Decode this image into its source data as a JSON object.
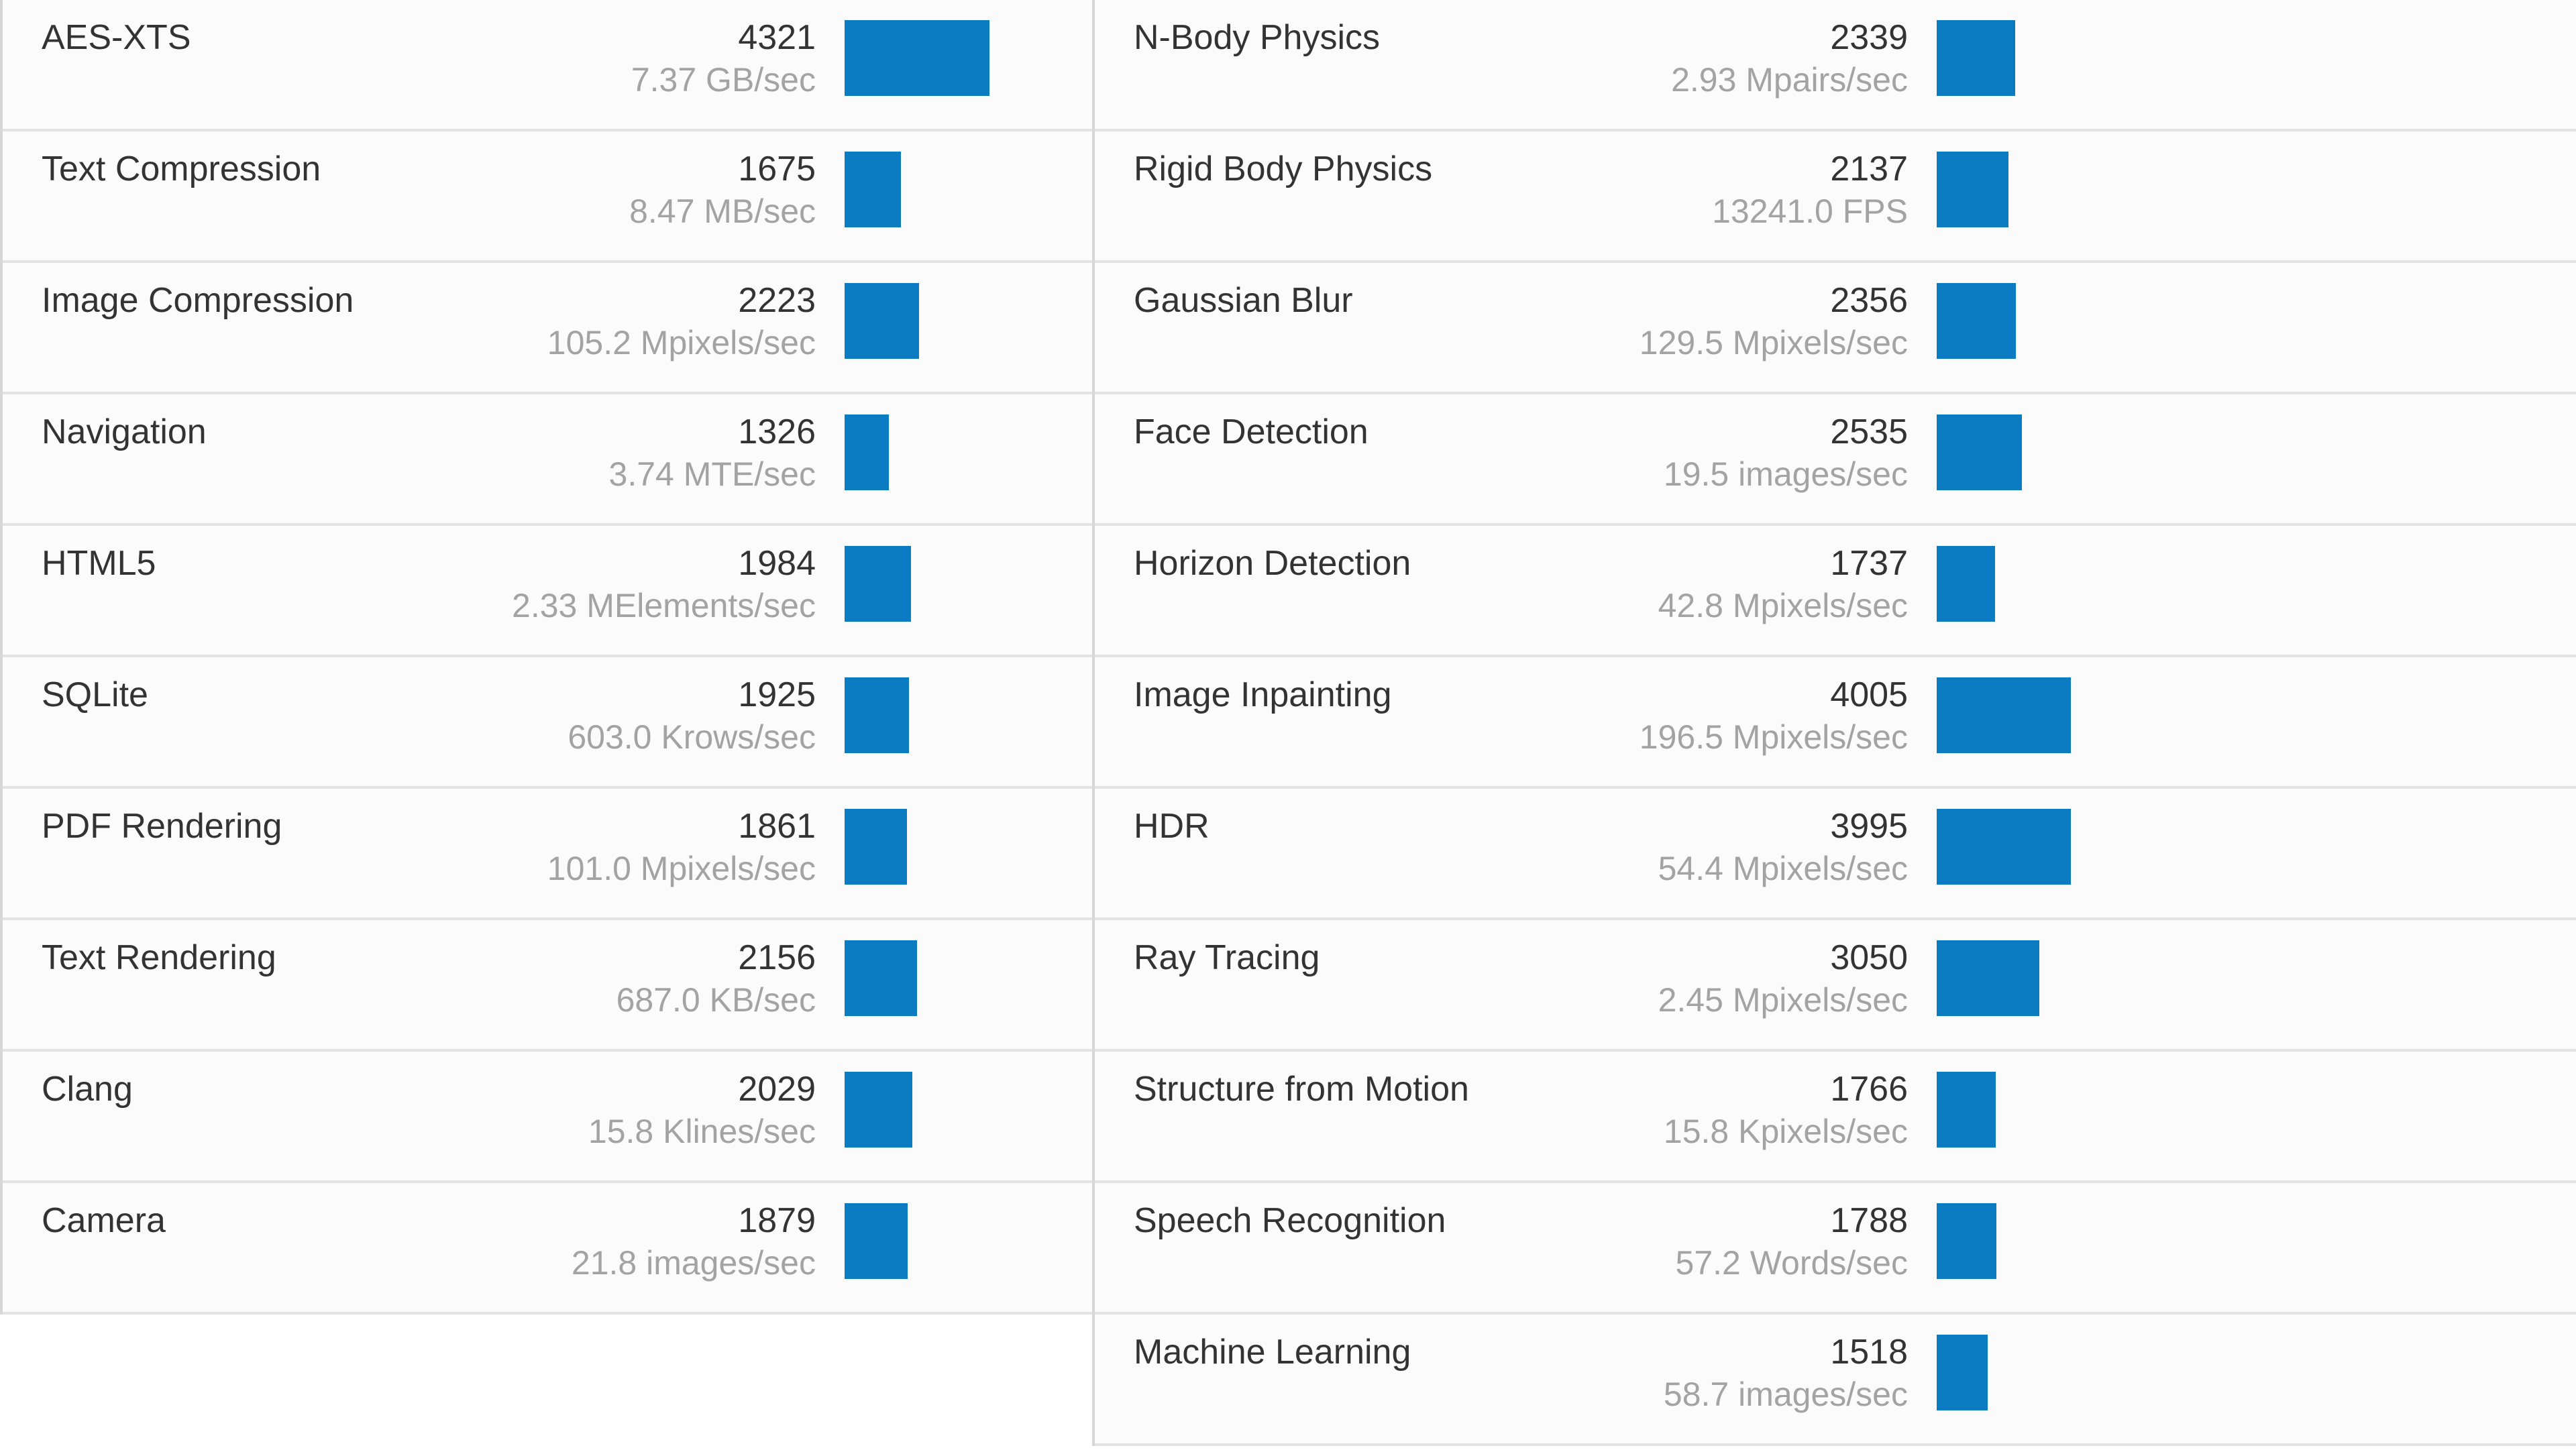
{
  "bar_color": "#0c7cc2",
  "columns": [
    {
      "rows": [
        {
          "name": "AES-XTS",
          "score": "4321",
          "rate": "7.37 GB/sec",
          "value": 4321
        },
        {
          "name": "Text Compression",
          "score": "1675",
          "rate": "8.47 MB/sec",
          "value": 1675
        },
        {
          "name": "Image Compression",
          "score": "2223",
          "rate": "105.2 Mpixels/sec",
          "value": 2223
        },
        {
          "name": "Navigation",
          "score": "1326",
          "rate": "3.74 MTE/sec",
          "value": 1326
        },
        {
          "name": "HTML5",
          "score": "1984",
          "rate": "2.33 MElements/sec",
          "value": 1984
        },
        {
          "name": "SQLite",
          "score": "1925",
          "rate": "603.0 Krows/sec",
          "value": 1925
        },
        {
          "name": "PDF Rendering",
          "score": "1861",
          "rate": "101.0 Mpixels/sec",
          "value": 1861
        },
        {
          "name": "Text Rendering",
          "score": "2156",
          "rate": "687.0 KB/sec",
          "value": 2156
        },
        {
          "name": "Clang",
          "score": "2029",
          "rate": "15.8 Klines/sec",
          "value": 2029
        },
        {
          "name": "Camera",
          "score": "1879",
          "rate": "21.8 images/sec",
          "value": 1879
        }
      ]
    },
    {
      "rows": [
        {
          "name": "N-Body Physics",
          "score": "2339",
          "rate": "2.93 Mpairs/sec",
          "value": 2339
        },
        {
          "name": "Rigid Body Physics",
          "score": "2137",
          "rate": "13241.0 FPS",
          "value": 2137
        },
        {
          "name": "Gaussian Blur",
          "score": "2356",
          "rate": "129.5 Mpixels/sec",
          "value": 2356
        },
        {
          "name": "Face Detection",
          "score": "2535",
          "rate": "19.5 images/sec",
          "value": 2535
        },
        {
          "name": "Horizon Detection",
          "score": "1737",
          "rate": "42.8 Mpixels/sec",
          "value": 1737
        },
        {
          "name": "Image Inpainting",
          "score": "4005",
          "rate": "196.5 Mpixels/sec",
          "value": 4005
        },
        {
          "name": "HDR",
          "score": "3995",
          "rate": "54.4 Mpixels/sec",
          "value": 3995
        },
        {
          "name": "Ray Tracing",
          "score": "3050",
          "rate": "2.45 Mpixels/sec",
          "value": 3050
        },
        {
          "name": "Structure from Motion",
          "score": "1766",
          "rate": "15.8 Kpixels/sec",
          "value": 1766
        },
        {
          "name": "Speech Recognition",
          "score": "1788",
          "rate": "57.2 Words/sec",
          "value": 1788
        },
        {
          "name": "Machine Learning",
          "score": "1518",
          "rate": "58.7 images/sec",
          "value": 1518
        }
      ]
    }
  ]
}
